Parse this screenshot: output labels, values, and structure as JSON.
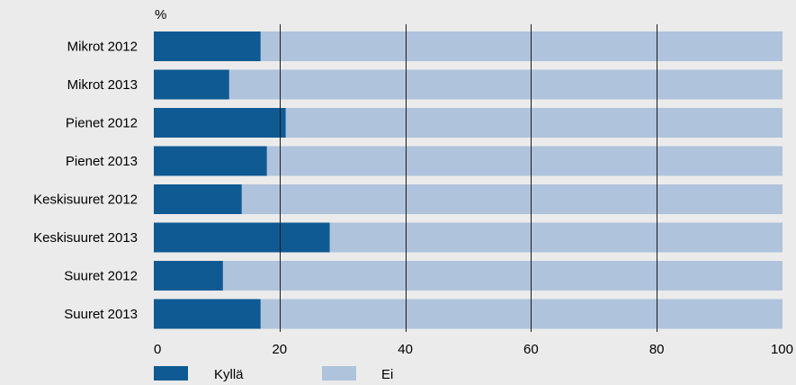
{
  "chart_data": {
    "type": "bar",
    "orientation": "horizontal",
    "stacked": true,
    "unit_label": "%",
    "categories": [
      "Mikrot 2012",
      "Mikrot 2013",
      "Pienet 2012",
      "Pienet 2013",
      "Keskisuuret 2012",
      "Keskisuuret 2013",
      "Suuret 2012",
      "Suuret 2013"
    ],
    "series": [
      {
        "name": "Kyllä",
        "color": "#0f5a93",
        "values": [
          17,
          12,
          21,
          18,
          14,
          28,
          11,
          17
        ]
      },
      {
        "name": "Ei",
        "color": "#afc3dc",
        "values": [
          83,
          88,
          79,
          82,
          86,
          72,
          89,
          83
        ]
      }
    ],
    "xlim": [
      0,
      100
    ],
    "xticks": [
      "0",
      "20",
      "40",
      "60",
      "80",
      "100"
    ],
    "gridlines": [
      20,
      40,
      60,
      80
    ],
    "grid": true,
    "legend_position": "bottom-left"
  }
}
